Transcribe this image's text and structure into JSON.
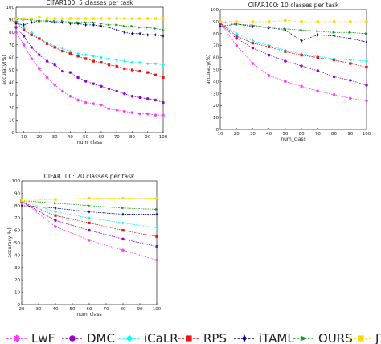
{
  "chart_data": [
    {
      "type": "line",
      "title": "CIFAR100: 5 classes per task",
      "xlabel": "num_class",
      "ylabel": "accuracy(%)",
      "x": [
        5,
        10,
        15,
        20,
        25,
        30,
        35,
        40,
        45,
        50,
        55,
        60,
        65,
        70,
        75,
        80,
        85,
        90,
        95,
        100
      ],
      "xlim": [
        5,
        100
      ],
      "ylim": [
        0,
        100
      ],
      "xticks": [
        10,
        20,
        30,
        40,
        50,
        60,
        70,
        80,
        90,
        100
      ],
      "yticks": [
        0,
        10,
        20,
        30,
        40,
        50,
        60,
        70,
        80,
        90,
        100
      ],
      "grid": false,
      "series": [
        {
          "name": "LwF",
          "values": [
            80,
            70,
            59,
            51,
            44,
            38,
            33,
            29,
            26,
            24,
            23,
            22,
            19,
            18,
            17,
            16,
            15,
            15,
            14,
            14
          ]
        },
        {
          "name": "DMC",
          "values": [
            84,
            77,
            68,
            62,
            57,
            54,
            49,
            48,
            44,
            41,
            39,
            37,
            35,
            33,
            31,
            29,
            28,
            27,
            26,
            24
          ]
        },
        {
          "name": "iCaLR",
          "values": [
            89,
            84,
            80,
            75,
            72,
            69,
            67,
            65,
            63,
            62,
            61,
            60,
            59,
            58,
            57,
            56,
            56,
            55,
            55,
            54
          ]
        },
        {
          "name": "RPS",
          "values": [
            88,
            82,
            78,
            75,
            71,
            68,
            65,
            63,
            61,
            59,
            57,
            56,
            54,
            53,
            51,
            50,
            49,
            48,
            46,
            44
          ]
        },
        {
          "name": "iTAML",
          "values": [
            87,
            86,
            88,
            89,
            89,
            88,
            88,
            87,
            87,
            86,
            86,
            85,
            84,
            82,
            80,
            79,
            79,
            78,
            78,
            77
          ]
        },
        {
          "name": "OURS",
          "values": [
            91,
            90,
            90,
            89,
            89,
            89,
            89,
            88,
            88,
            88,
            88,
            87,
            86,
            86,
            85,
            85,
            84,
            84,
            83,
            82
          ]
        },
        {
          "name": "JT",
          "values": [
            91,
            91,
            91,
            92,
            91,
            91,
            91,
            91,
            91,
            91,
            91,
            91,
            91,
            91,
            91,
            91,
            91,
            91,
            91,
            91
          ]
        }
      ]
    },
    {
      "type": "line",
      "title": "CIFAR100: 10 classes per task",
      "xlabel": "num_class",
      "ylabel": "accuracy(%)",
      "x": [
        10,
        20,
        30,
        40,
        50,
        60,
        70,
        80,
        90,
        100
      ],
      "xlim": [
        10,
        100
      ],
      "ylim": [
        0,
        100
      ],
      "xticks": [
        10,
        20,
        30,
        40,
        50,
        60,
        70,
        80,
        90,
        100
      ],
      "yticks": [
        0,
        10,
        20,
        30,
        40,
        50,
        60,
        70,
        80,
        90,
        100
      ],
      "grid": false,
      "series": [
        {
          "name": "LwF",
          "values": [
            89,
            70,
            55,
            45,
            40,
            36,
            32,
            29,
            26,
            24
          ]
        },
        {
          "name": "DMC",
          "values": [
            88,
            76,
            68,
            62,
            57,
            53,
            49,
            44,
            41,
            37
          ]
        },
        {
          "name": "iCaLR",
          "values": [
            89,
            80,
            74,
            70,
            66,
            63,
            61,
            59,
            58,
            57
          ]
        },
        {
          "name": "RPS",
          "values": [
            89,
            78,
            72,
            69,
            65,
            62,
            60,
            58,
            55,
            52
          ]
        },
        {
          "name": "iTAML",
          "values": [
            86,
            88,
            86,
            85,
            83,
            74,
            79,
            78,
            76,
            73
          ]
        },
        {
          "name": "OURS",
          "values": [
            90,
            88,
            87,
            85,
            84,
            83,
            82,
            81,
            81,
            80
          ]
        },
        {
          "name": "JT",
          "values": [
            90,
            90,
            90,
            90,
            91,
            90,
            90,
            90,
            90,
            90
          ]
        }
      ]
    },
    {
      "type": "line",
      "title": "CIFAR100: 20 classes per task",
      "xlabel": "num_class",
      "ylabel": "accuracy(%)",
      "x": [
        20,
        40,
        60,
        80,
        100
      ],
      "xlim": [
        20,
        100
      ],
      "ylim": [
        0,
        100
      ],
      "xticks": [
        20,
        30,
        40,
        50,
        60,
        70,
        80,
        90,
        100
      ],
      "yticks": [
        0,
        10,
        20,
        30,
        40,
        50,
        60,
        70,
        80,
        90,
        100
      ],
      "grid": false,
      "series": [
        {
          "name": "LwF",
          "values": [
            84,
            63,
            52,
            44,
            36
          ]
        },
        {
          "name": "DMC",
          "values": [
            83,
            68,
            60,
            53,
            47
          ]
        },
        {
          "name": "iCaLR",
          "values": [
            84,
            75,
            70,
            66,
            62
          ]
        },
        {
          "name": "RPS",
          "values": [
            83,
            72,
            66,
            60,
            55
          ]
        },
        {
          "name": "iTAML",
          "values": [
            80,
            78,
            75,
            73,
            73
          ]
        },
        {
          "name": "OURS",
          "values": [
            84,
            82,
            80,
            78,
            77
          ]
        },
        {
          "name": "JT",
          "values": [
            84,
            85,
            86,
            86,
            86
          ]
        }
      ]
    }
  ],
  "legend": {
    "placement": "bottom",
    "entries": [
      {
        "name": "LwF",
        "color": "#ff33ff",
        "marker": "star",
        "icon": "star-marker-icon"
      },
      {
        "name": "DMC",
        "color": "#9400d3",
        "marker": "circle",
        "icon": "circle-marker-icon"
      },
      {
        "name": "iCaLR",
        "color": "#00ffff",
        "marker": "diamond",
        "icon": "diamond-marker-icon"
      },
      {
        "name": "RPS",
        "color": "#ee1111",
        "marker": "square",
        "icon": "square-marker-icon"
      },
      {
        "name": "iTAML",
        "color": "#00008b",
        "marker": "thin-diamond",
        "icon": "thin-diamond-marker-icon"
      },
      {
        "name": "OURS",
        "color": "#1a9a1a",
        "marker": "triangle",
        "icon": "triangle-marker-icon"
      },
      {
        "name": "JT",
        "color": "#ffd700",
        "marker": "square",
        "icon": "square-marker-icon"
      }
    ]
  }
}
